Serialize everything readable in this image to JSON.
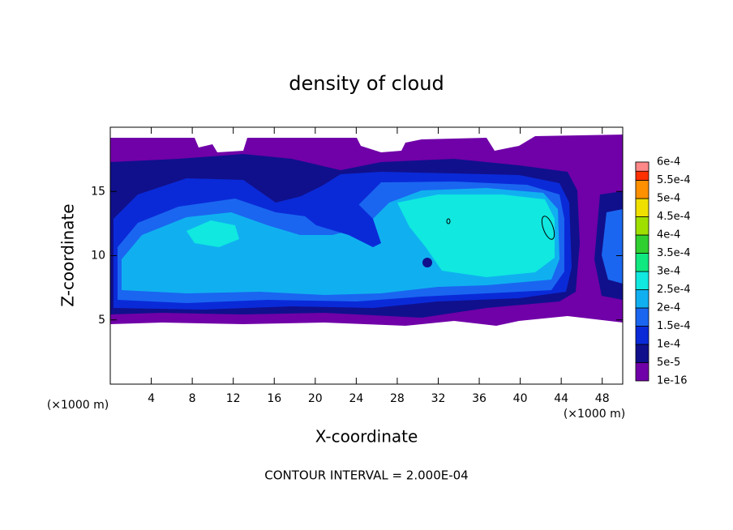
{
  "chart_data": {
    "type": "contour",
    "title": "density of cloud",
    "x_label": "X-coordinate",
    "y_label": "Z-coordinate",
    "x_unit": "(×1000 m)",
    "y_unit": "(×1000 m)",
    "footer": "CONTOUR INTERVAL = 2.000E-04",
    "xlim": [
      0,
      50
    ],
    "ylim": [
      0,
      20
    ],
    "xticks": [
      4,
      8,
      12,
      16,
      20,
      24,
      28,
      32,
      36,
      40,
      44,
      48
    ],
    "yticks": [
      5,
      10,
      15
    ],
    "colorbar": {
      "levels": [
        {
          "value": 1e-16,
          "label": "1e-16"
        },
        {
          "value": 5e-05,
          "label": "5e-5"
        },
        {
          "value": 0.0001,
          "label": "1e-4"
        },
        {
          "value": 0.00015,
          "label": "1.5e-4"
        },
        {
          "value": 0.0002,
          "label": "2e-4"
        },
        {
          "value": 0.00025,
          "label": "2.5e-4"
        },
        {
          "value": 0.0003,
          "label": "3e-4"
        },
        {
          "value": 0.00035,
          "label": "3.5e-4"
        },
        {
          "value": 0.0004,
          "label": "4e-4"
        },
        {
          "value": 0.00045,
          "label": "4.5e-4"
        },
        {
          "value": 0.0005,
          "label": "5e-4"
        },
        {
          "value": 0.00055,
          "label": "5.5e-4"
        },
        {
          "value": 0.0006,
          "label": "6e-4"
        }
      ],
      "colors": [
        "#7000a8",
        "#10108c",
        "#0a2ad8",
        "#1a66f0",
        "#10b0f0",
        "#10e8e0",
        "#10e880",
        "#30d030",
        "#a0e000",
        "#f0e000",
        "#ff9000",
        "#ff3000",
        "#ff8888"
      ]
    }
  }
}
